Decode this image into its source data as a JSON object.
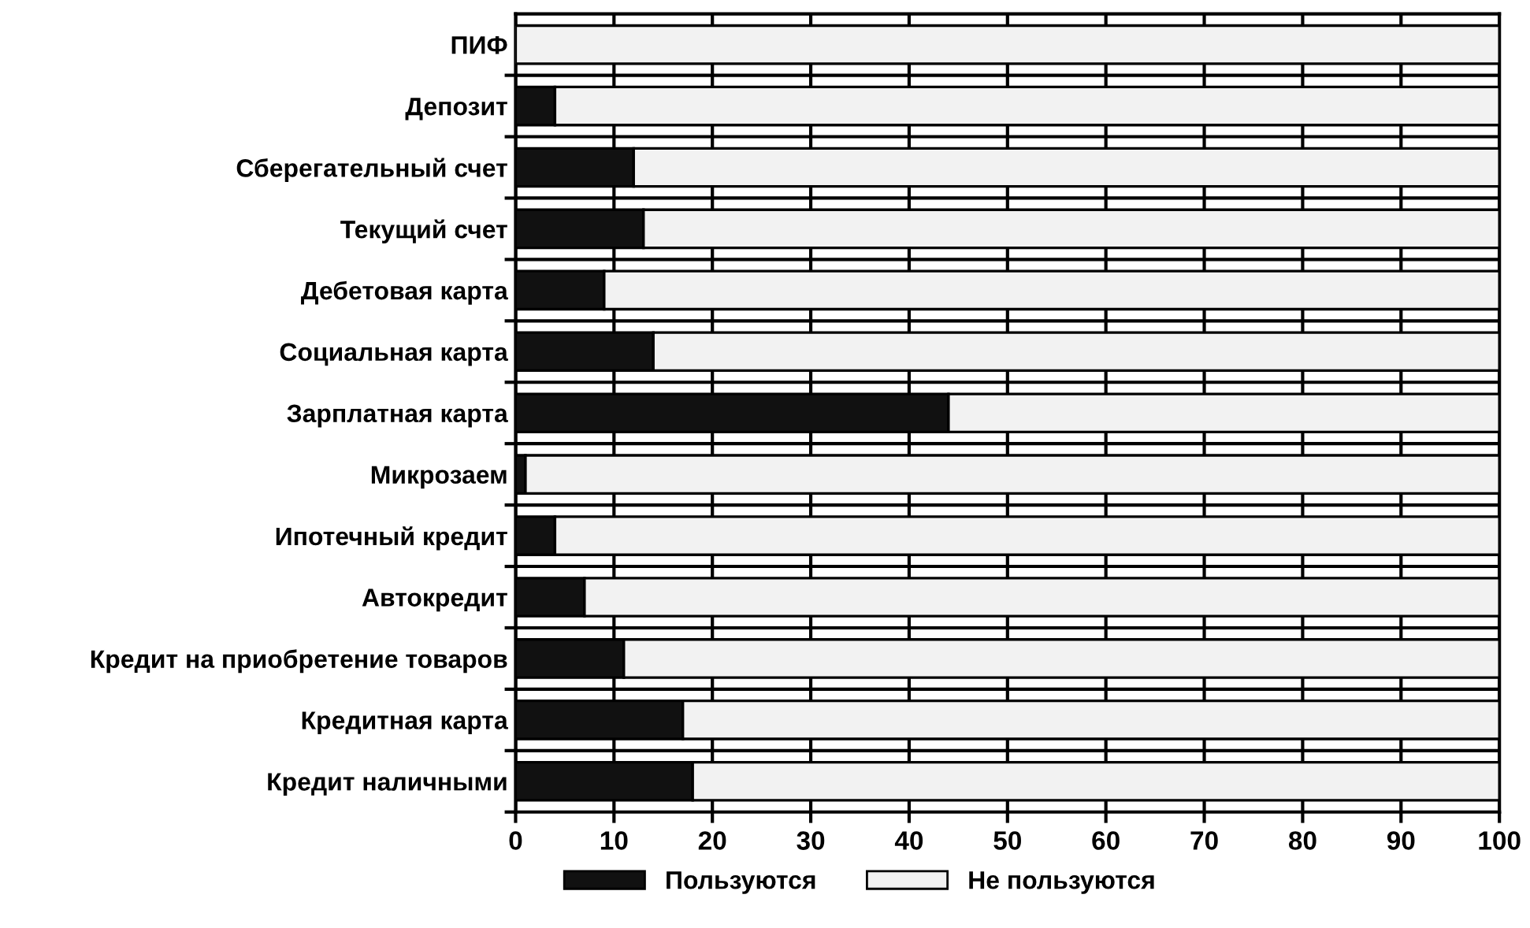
{
  "chart_data": {
    "type": "bar",
    "orientation": "horizontal",
    "stacked": true,
    "categories": [
      "ПИФ",
      "Депозит",
      "Сберегательный счет",
      "Текущий счет",
      "Дебетовая карта",
      "Социальная карта",
      "Зарплатная карта",
      "Микрозаем",
      "Ипотечный кредит",
      "Автокредит",
      "Кредит на приобретение товаров",
      "Кредитная карта",
      "Кредит наличными"
    ],
    "series": [
      {
        "name": "Пользуются",
        "color": "#111111",
        "values": [
          0,
          4,
          12,
          13,
          9,
          14,
          44,
          1,
          4,
          7,
          11,
          17,
          18
        ]
      },
      {
        "name": "Не пользуются",
        "color": "#f2f2f2",
        "values": [
          100,
          96,
          88,
          87,
          91,
          86,
          56,
          99,
          96,
          93,
          89,
          83,
          82
        ]
      }
    ],
    "xlim": [
      0,
      100
    ],
    "xticks": [
      0,
      10,
      20,
      30,
      40,
      50,
      60,
      70,
      80,
      90,
      100
    ],
    "grid": true,
    "legend": "bottom"
  }
}
